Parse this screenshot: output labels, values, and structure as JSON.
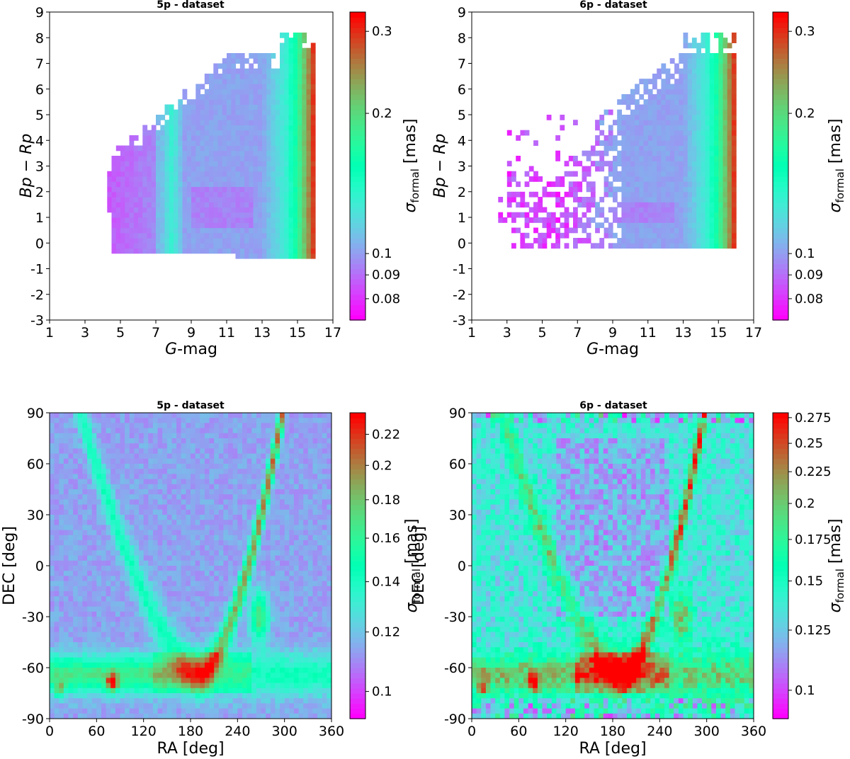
{
  "colormap": "rainbow",
  "chart_data": [
    {
      "type": "heatmap",
      "panel": "top-left",
      "title": "5p - dataset",
      "xlabel": "G-mag",
      "ylabel": "Bp − Rp",
      "xlim": [
        1,
        17
      ],
      "ylim": [
        -3,
        9
      ],
      "xticks": [
        "1",
        "3",
        "5",
        "7",
        "9",
        "11",
        "13",
        "15",
        "17"
      ],
      "yticks": [
        "-3",
        "-2",
        "-1",
        "0",
        "1",
        "2",
        "3",
        "4",
        "5",
        "6",
        "7",
        "8",
        "9"
      ],
      "colorbar": {
        "label": "σformal [mas]",
        "label_main": "σ",
        "label_sub": "formal",
        "label_unit": " [mas]",
        "scale": "log",
        "range": [
          0.072,
          0.33
        ],
        "ticks": [
          0.08,
          0.09,
          0.1,
          0.2,
          0.3
        ],
        "tick_labels": [
          "0.08",
          "0.09",
          "0.1",
          "0.2",
          "0.3"
        ]
      }
    },
    {
      "type": "heatmap",
      "panel": "top-right",
      "title": "6p - dataset",
      "xlabel": "G-mag",
      "ylabel": "Bp − Rp",
      "xlim": [
        1,
        17
      ],
      "ylim": [
        -3,
        9
      ],
      "xticks": [
        "1",
        "3",
        "5",
        "7",
        "9",
        "11",
        "13",
        "15",
        "17"
      ],
      "yticks": [
        "-3",
        "-2",
        "-1",
        "0",
        "1",
        "2",
        "3",
        "4",
        "5",
        "6",
        "7",
        "8",
        "9"
      ],
      "colorbar": {
        "label": "σformal [mas]",
        "label_main": "σ",
        "label_sub": "formal",
        "label_unit": " [mas]",
        "scale": "log",
        "range": [
          0.072,
          0.33
        ],
        "ticks": [
          0.08,
          0.09,
          0.1,
          0.2,
          0.3
        ],
        "tick_labels": [
          "0.08",
          "0.09",
          "0.1",
          "0.2",
          "0.3"
        ]
      }
    },
    {
      "type": "heatmap",
      "panel": "bottom-left",
      "title": "5p - dataset",
      "xlabel": "RA [deg]",
      "ylabel": "DEC [deg]",
      "xlim": [
        0,
        360
      ],
      "ylim": [
        -90,
        90
      ],
      "xticks": [
        "0",
        "60",
        "120",
        "180",
        "240",
        "300",
        "360"
      ],
      "yticks": [
        "-90",
        "-60",
        "-30",
        "0",
        "30",
        "60",
        "90"
      ],
      "colorbar": {
        "label": "σformal [mas]",
        "label_main": "σ",
        "label_sub": "formal",
        "label_unit": " [mas]",
        "scale": "log",
        "range": [
          0.092,
          0.235
        ],
        "ticks": [
          0.1,
          0.12,
          0.14,
          0.16,
          0.18,
          0.2,
          0.22
        ],
        "tick_labels": [
          "0.1",
          "0.12",
          "0.14",
          "0.16",
          "0.18",
          "0.2",
          "0.22"
        ]
      }
    },
    {
      "type": "heatmap",
      "panel": "bottom-right",
      "title": "6p - dataset",
      "xlabel": "RA [deg]",
      "ylabel": "DEC [deg]",
      "xlim": [
        0,
        360
      ],
      "ylim": [
        -90,
        90
      ],
      "xticks": [
        "0",
        "60",
        "120",
        "180",
        "240",
        "300",
        "360"
      ],
      "yticks": [
        "-90",
        "-60",
        "-30",
        "0",
        "30",
        "60",
        "90"
      ],
      "colorbar": {
        "label": "σformal [mas]",
        "label_main": "σ",
        "label_sub": "formal",
        "label_unit": " [mas]",
        "scale": "log",
        "range": [
          0.09,
          0.28
        ],
        "ticks": [
          0.1,
          0.125,
          0.15,
          0.175,
          0.2,
          0.225,
          0.25,
          0.275
        ],
        "tick_labels": [
          "0.1",
          "0.125",
          "0.15",
          "0.175",
          "0.2",
          "0.225",
          "0.25",
          "0.275"
        ]
      }
    }
  ]
}
